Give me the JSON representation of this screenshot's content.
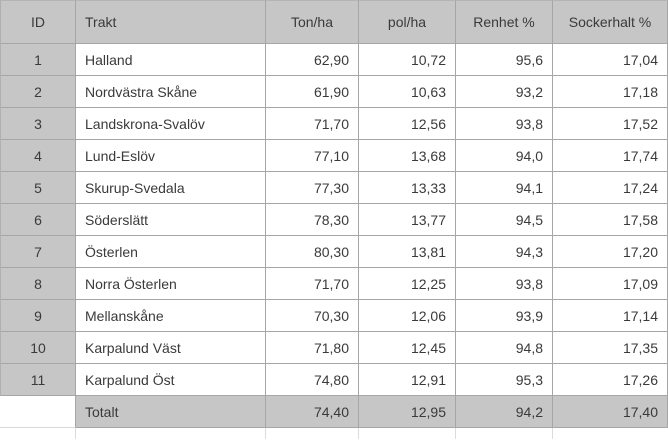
{
  "table": {
    "columns": [
      {
        "label": "ID"
      },
      {
        "label": "Trakt"
      },
      {
        "label": "Ton/ha"
      },
      {
        "label": "pol/ha"
      },
      {
        "label": "Renhet %"
      },
      {
        "label": "Sockerhalt %"
      }
    ],
    "rows": [
      {
        "id": "1",
        "trakt": "Halland",
        "ton_ha": "62,90",
        "pol_ha": "10,72",
        "renhet": "95,6",
        "sockerhalt": "17,04"
      },
      {
        "id": "2",
        "trakt": "Nordvästra Skåne",
        "ton_ha": "61,90",
        "pol_ha": "10,63",
        "renhet": "93,2",
        "sockerhalt": "17,18"
      },
      {
        "id": "3",
        "trakt": "Landskrona-Svalöv",
        "ton_ha": "71,70",
        "pol_ha": "12,56",
        "renhet": "93,8",
        "sockerhalt": "17,52"
      },
      {
        "id": "4",
        "trakt": "Lund-Eslöv",
        "ton_ha": "77,10",
        "pol_ha": "13,68",
        "renhet": "94,0",
        "sockerhalt": "17,74"
      },
      {
        "id": "5",
        "trakt": "Skurup-Svedala",
        "ton_ha": "77,30",
        "pol_ha": "13,33",
        "renhet": "94,1",
        "sockerhalt": "17,24"
      },
      {
        "id": "6",
        "trakt": "Söderslätt",
        "ton_ha": "78,30",
        "pol_ha": "13,77",
        "renhet": "94,5",
        "sockerhalt": "17,58"
      },
      {
        "id": "7",
        "trakt": "Österlen",
        "ton_ha": "80,30",
        "pol_ha": "13,81",
        "renhet": "94,3",
        "sockerhalt": "17,20"
      },
      {
        "id": "8",
        "trakt": "Norra Österlen",
        "ton_ha": "71,70",
        "pol_ha": "12,25",
        "renhet": "93,8",
        "sockerhalt": "17,09"
      },
      {
        "id": "9",
        "trakt": "Mellanskåne",
        "ton_ha": "70,30",
        "pol_ha": "12,06",
        "renhet": "93,9",
        "sockerhalt": "17,14"
      },
      {
        "id": "10",
        "trakt": "Karpalund Väst",
        "ton_ha": "71,80",
        "pol_ha": "12,45",
        "renhet": "94,8",
        "sockerhalt": "17,35"
      },
      {
        "id": "11",
        "trakt": "Karpalund Öst",
        "ton_ha": "74,80",
        "pol_ha": "12,91",
        "renhet": "95,3",
        "sockerhalt": "17,26"
      }
    ],
    "total": {
      "id": "",
      "trakt": "Totalt",
      "ton_ha": "74,40",
      "pol_ha": "12,95",
      "renhet": "94,2",
      "sockerhalt": "17,40"
    }
  },
  "colors": {
    "header_fill": "#c6c6c6",
    "grid_line": "#a6a6a6",
    "light_grid_line": "#d9d9d9",
    "text": "#3a3a3a"
  }
}
